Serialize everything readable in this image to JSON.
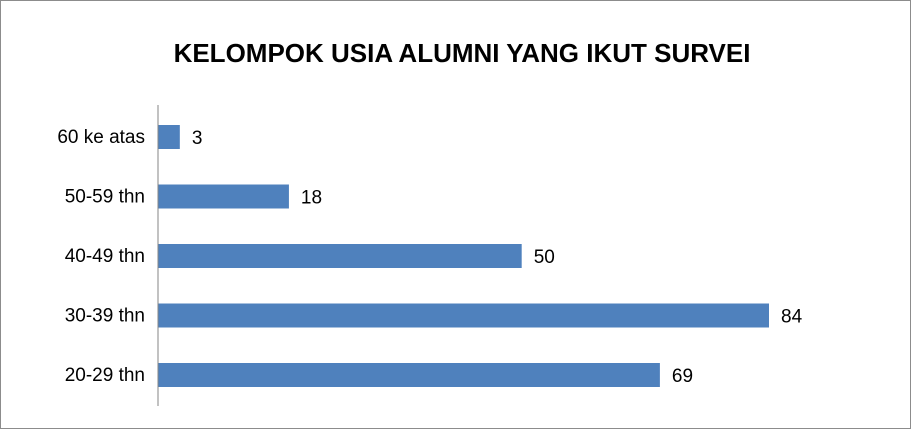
{
  "chart_data": {
    "type": "bar",
    "orientation": "horizontal",
    "title": "KELOMPOK USIA ALUMNI YANG IKUT SURVEI",
    "categories": [
      "60 ke atas",
      "50-59 thn",
      "40-49 thn",
      "30-39 thn",
      "20-29 thn"
    ],
    "values": [
      3,
      18,
      50,
      84,
      69
    ],
    "color": "#4f81bd"
  }
}
